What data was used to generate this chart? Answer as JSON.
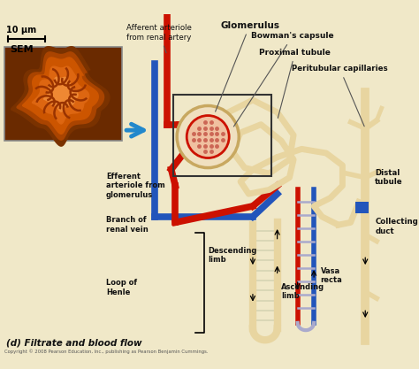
{
  "title": "(d) Filtrate and blood flow",
  "copyright": "Copyright © 2008 Pearson Education, Inc., publishing as Pearson Benjamin Cummings.",
  "sem_label": "SEM",
  "scale_label": "10 μm",
  "labels": {
    "afferent": "Afferent arteriole\nfrom renal artery",
    "glomerulus": "Glomerulus",
    "bowman": "Bowman's capsule",
    "proximal": "Proximal tubule",
    "peritubular": "Peritubular capillaries",
    "efferent": "Efferent\narteriole from\nglomerulus",
    "branch_vein": "Branch of\nrenal vein",
    "descending": "Descending\nlimb",
    "ascending": "Ascending\nlimb",
    "loop_henle": "Loop of\nHenle",
    "distal": "Distal\ntubule",
    "collecting": "Collecting\nduct",
    "vasa_recta": "Vasa\nrecta"
  },
  "colors": {
    "artery_red": "#cc1100",
    "vein_blue": "#2255bb",
    "tubule_tan": "#e8d5a0",
    "tubule_outline": "#c8a860",
    "background": "#f0e8c8",
    "text": "#111111",
    "arrow_blue": "#2288cc",
    "vasa_lavender": "#aaaacc",
    "sem_dark": "#6a2a00",
    "sem_orange": "#cc5500",
    "sem_bright": "#dd7722"
  }
}
